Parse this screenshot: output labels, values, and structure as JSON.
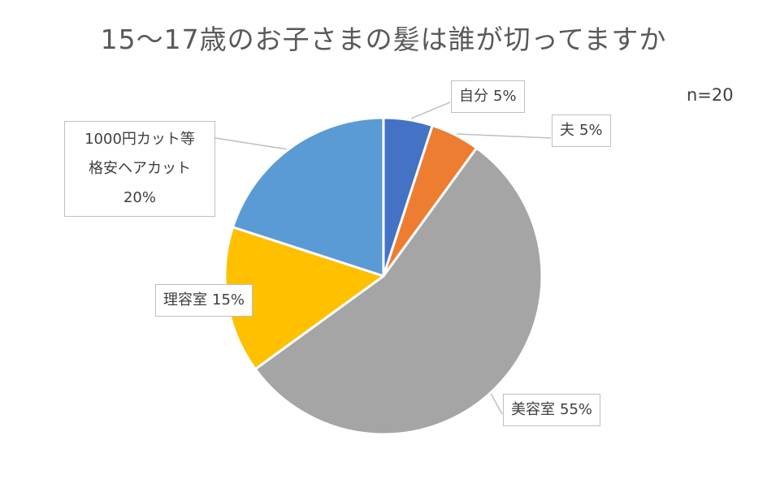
{
  "chart_data": {
    "type": "pie",
    "title": "15〜17歳のお子さまの髪は誰が切ってますか",
    "annotation": "n=20",
    "slices": [
      {
        "label": "自分",
        "value": 5,
        "value_label": "5%",
        "color": "#4472c4"
      },
      {
        "label": "夫",
        "value": 5,
        "value_label": "5%",
        "color": "#ed7d31"
      },
      {
        "label": "美容室",
        "value": 55,
        "value_label": "55%",
        "color": "#a5a5a5"
      },
      {
        "label": "理容室",
        "value": 15,
        "value_label": "15%",
        "color": "#ffc000"
      },
      {
        "label": "1000円カット等\n格安ヘアカット",
        "label_lines": [
          "1000円カット等",
          "格安ヘアカット"
        ],
        "value": 20,
        "value_label": "20%",
        "color": "#5b9bd5"
      }
    ]
  }
}
